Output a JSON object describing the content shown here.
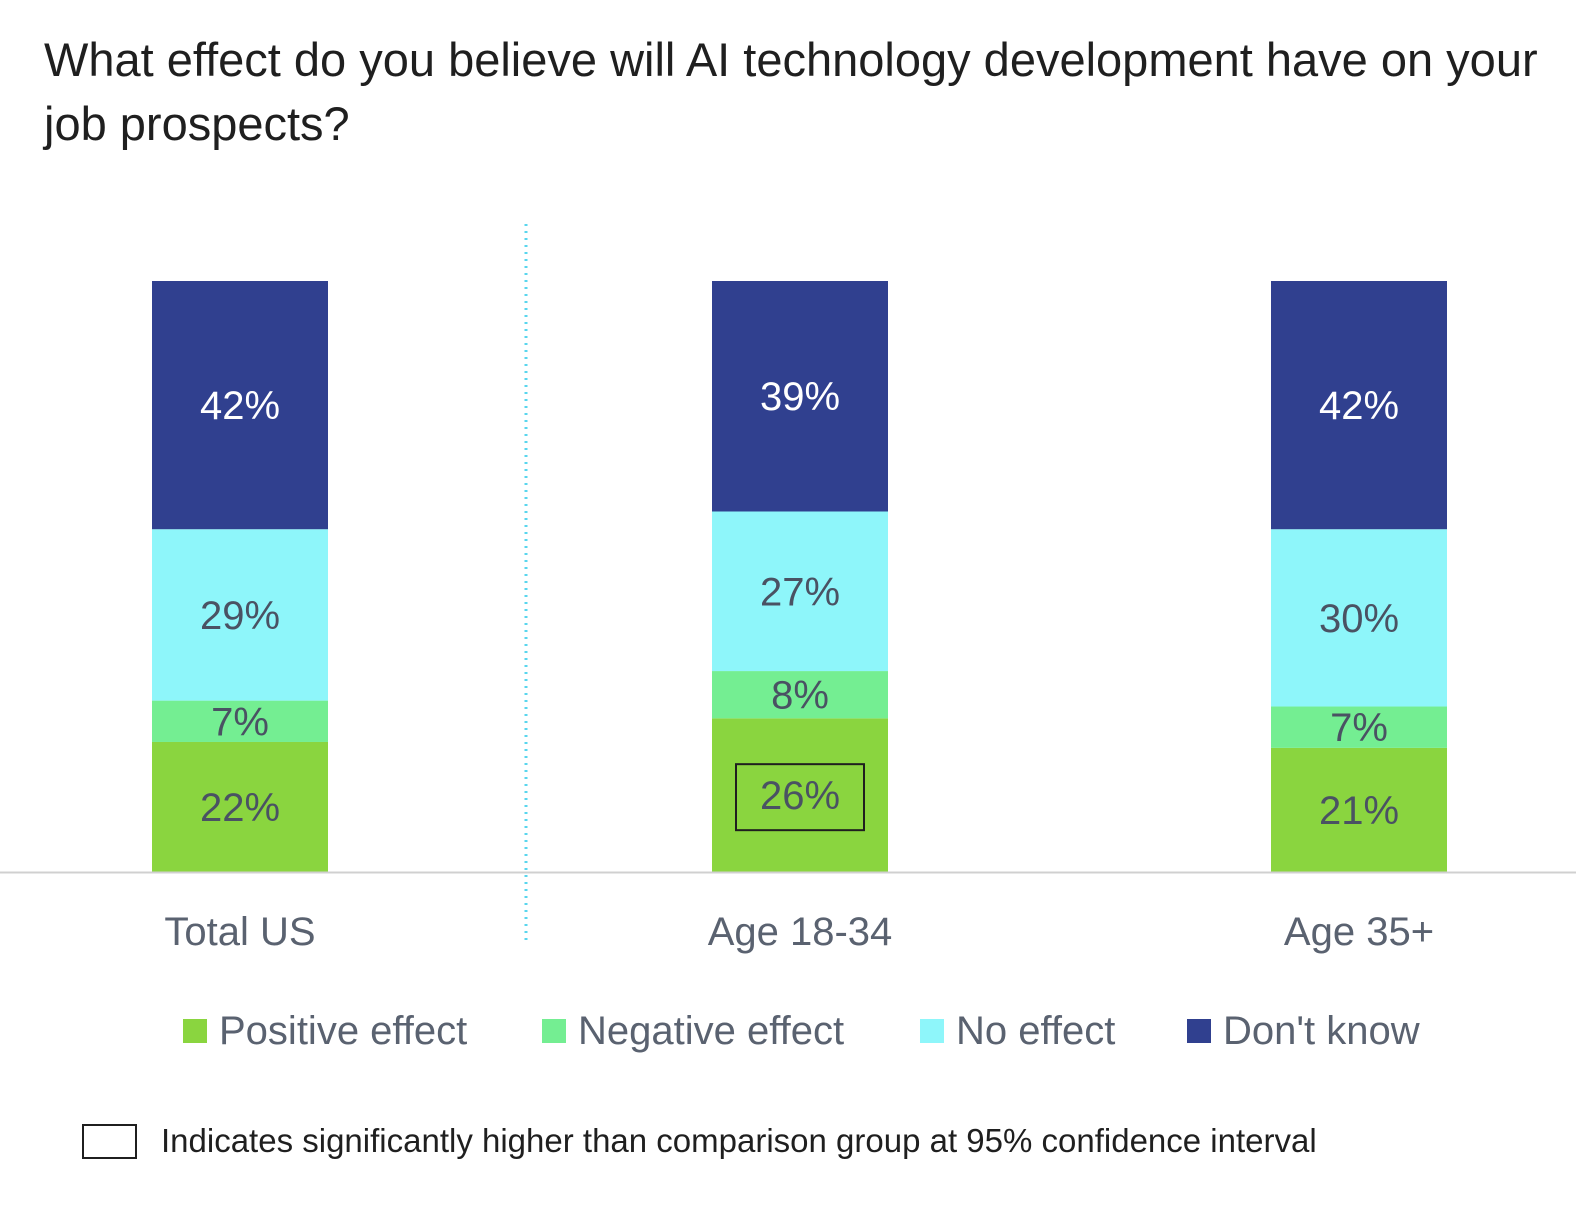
{
  "chart_data": {
    "type": "bar",
    "stacked": true,
    "title": "What effect do you believe will AI technology development have on your job prospects?",
    "categories": [
      "Total US",
      "Age 18-34",
      "Age 35+"
    ],
    "series": [
      {
        "name": "Positive effect",
        "color": "#8ad53f",
        "label_color": "#4a5263",
        "values": [
          22,
          26,
          21
        ]
      },
      {
        "name": "Negative effect",
        "color": "#74ee92",
        "label_color": "#4a5263",
        "values": [
          7,
          8,
          7
        ]
      },
      {
        "name": "No effect",
        "color": "#8ef6fa",
        "label_color": "#4a5263",
        "values": [
          29,
          27,
          30
        ]
      },
      {
        "name": "Don't know",
        "color": "#30408f",
        "label_color": "#ffffff",
        "values": [
          42,
          39,
          42
        ]
      }
    ],
    "value_labels": [
      [
        "22%",
        "7%",
        "29%",
        "42%"
      ],
      [
        "26%",
        "8%",
        "27%",
        "39%"
      ],
      [
        "21%",
        "7%",
        "30%",
        "42%"
      ]
    ],
    "significant": [
      {
        "category": "Age 18-34",
        "series": "Positive effect"
      }
    ],
    "ylim": [
      0,
      100
    ],
    "xlabel": "",
    "ylabel": "",
    "legend_position": "bottom",
    "grid": false
  },
  "footnote": {
    "text": "Indicates significantly higher than comparison group at 95% confidence interval"
  }
}
